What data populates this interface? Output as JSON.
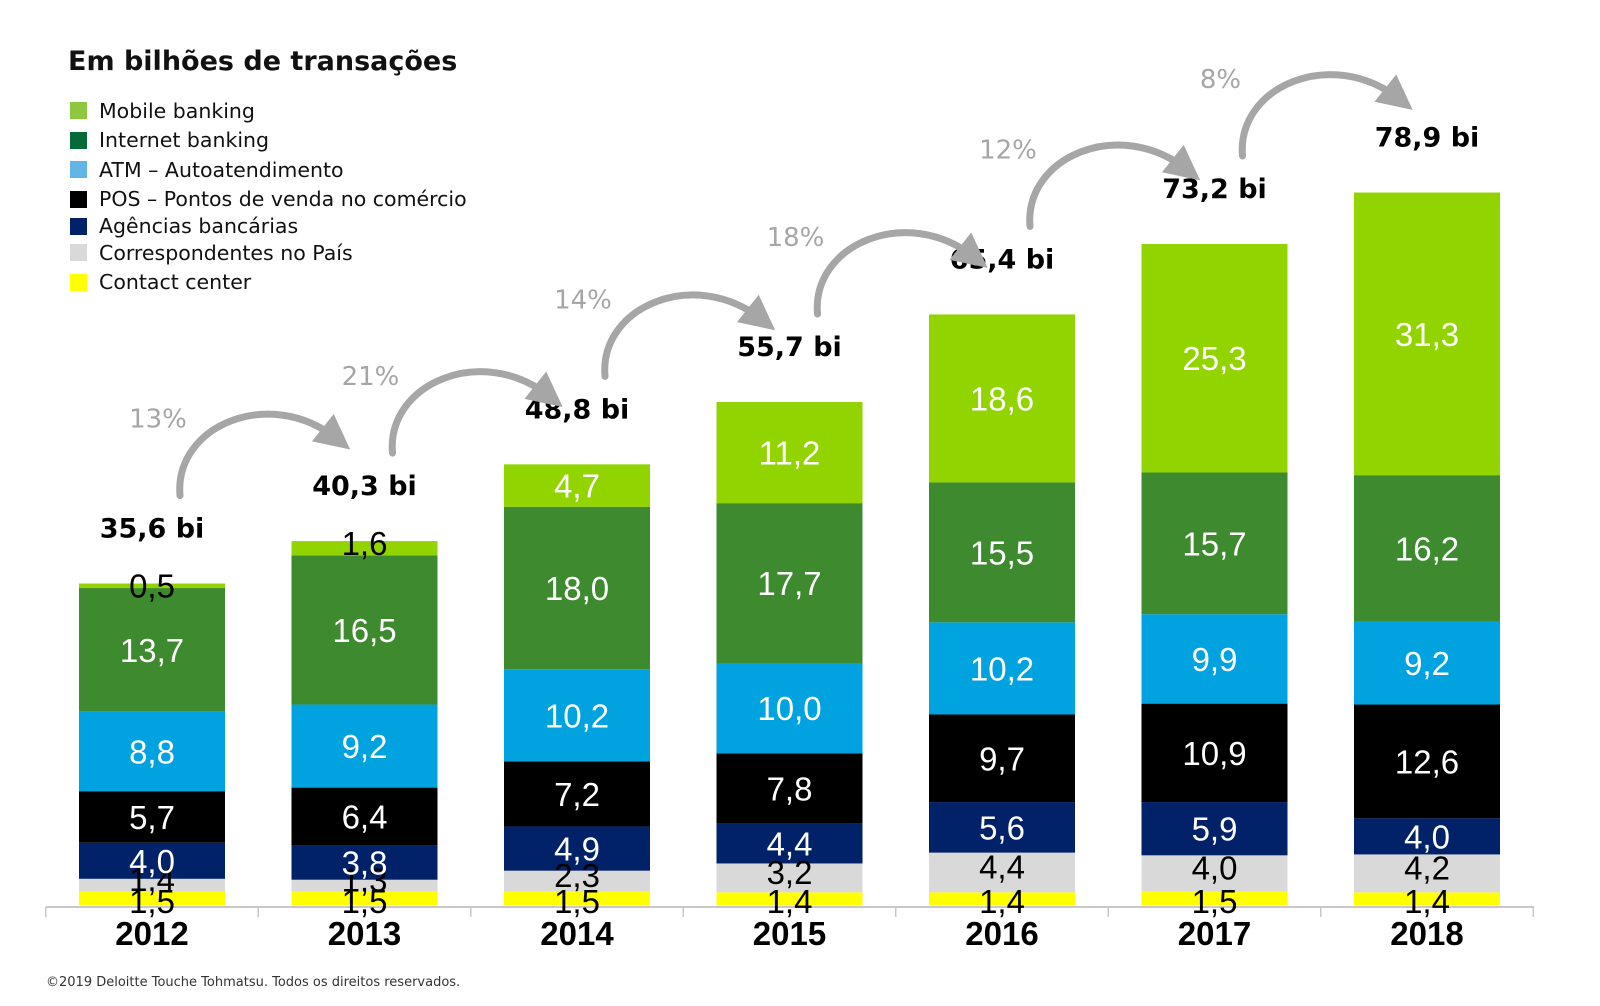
{
  "chart_data": {
    "type": "bar",
    "stacked": true,
    "title": "Em bilhões de transações",
    "xlabel": "",
    "ylabel": "",
    "categories": [
      "2012",
      "2013",
      "2014",
      "2015",
      "2016",
      "2017",
      "2018"
    ],
    "series": [
      {
        "name": "Contact center",
        "color": "#ffff00",
        "label_color": "#000000",
        "values": [
          1.5,
          1.5,
          1.5,
          1.4,
          1.4,
          1.5,
          1.4
        ],
        "labels": [
          "1,5",
          "1,5",
          "1,5",
          "1,4",
          "1,4",
          "1,5",
          "1,4"
        ]
      },
      {
        "name": "Correspondentes no País",
        "color": "#d9d9d9",
        "label_color": "#000000",
        "values": [
          1.4,
          1.3,
          2.3,
          3.2,
          4.4,
          4.0,
          4.2
        ],
        "labels": [
          "1,4",
          "1,3",
          "2,3",
          "3,2",
          "4,4",
          "4,0",
          "4,2"
        ]
      },
      {
        "name": "Agências bancárias",
        "color": "#012169",
        "label_color": "#ffffff",
        "values": [
          4.0,
          3.8,
          4.9,
          4.4,
          5.6,
          5.9,
          4.0
        ],
        "labels": [
          "4,0",
          "3,8",
          "4,9",
          "4,4",
          "5,6",
          "5,9",
          "4,0"
        ]
      },
      {
        "name": "POS – Pontos de venda no comércio",
        "color": "#000000",
        "label_color": "#ffffff",
        "values": [
          5.7,
          6.4,
          7.2,
          7.8,
          9.7,
          10.9,
          12.6
        ],
        "labels": [
          "5,7",
          "6,4",
          "7,2",
          "7,8",
          "9,7",
          "10,9",
          "12,6"
        ]
      },
      {
        "name": "ATM – Autoatendimento",
        "color": "#00a3e0",
        "label_color": "#ffffff",
        "values": [
          8.8,
          9.2,
          10.2,
          10.0,
          10.2,
          9.9,
          9.2
        ],
        "labels": [
          "8,8",
          "9,2",
          "10,2",
          "10,0",
          "10,2",
          "9,9",
          "9,2"
        ]
      },
      {
        "name": "Internet banking",
        "color": "#3e8a2f",
        "label_color": "#ffffff",
        "values": [
          13.7,
          16.5,
          18.0,
          17.7,
          15.5,
          15.7,
          16.2
        ],
        "labels": [
          "13,7",
          "16,5",
          "18,0",
          "17,7",
          "15,5",
          "15,7",
          "16,2"
        ]
      },
      {
        "name": "Mobile banking",
        "color": "#92d400",
        "label_color": "#ffffff",
        "values": [
          0.5,
          1.6,
          4.7,
          11.2,
          18.6,
          25.3,
          31.3
        ],
        "labels": [
          "0,5",
          "1,6",
          "4,7",
          "11,2",
          "18,6",
          "25,3",
          "31,3"
        ]
      }
    ],
    "totals": [
      "35,6 bi",
      "40,3 bi",
      "48,8 bi",
      "55,7 bi",
      "65,4 bi",
      "73,2 bi",
      "78,9 bi"
    ],
    "totals_values": [
      35.6,
      40.3,
      48.8,
      55.7,
      65.4,
      73.2,
      78.9
    ],
    "growth": [
      "13%",
      "21%",
      "14%",
      "18%",
      "12%",
      "8%"
    ],
    "legend": {
      "placement": "top-left",
      "items": [
        {
          "name": "Mobile banking",
          "color": "#8dc63f"
        },
        {
          "name": "Internet banking",
          "color": "#046a38"
        },
        {
          "name": "ATM – Autoatendimento",
          "color": "#62b5e5"
        },
        {
          "name": "POS – Pontos de venda no comércio",
          "color": "#000000"
        },
        {
          "name": "Agências bancárias",
          "color": "#012169"
        },
        {
          "name": "Correspondentes no País",
          "color": "#d9d9d9"
        },
        {
          "name": "Contact center",
          "color": "#ffff00"
        }
      ]
    },
    "grid": false,
    "ylim": [
      0,
      80
    ]
  },
  "footer": "©2019 Deloitte Touche Tohmatsu. Todos os direitos reservados."
}
